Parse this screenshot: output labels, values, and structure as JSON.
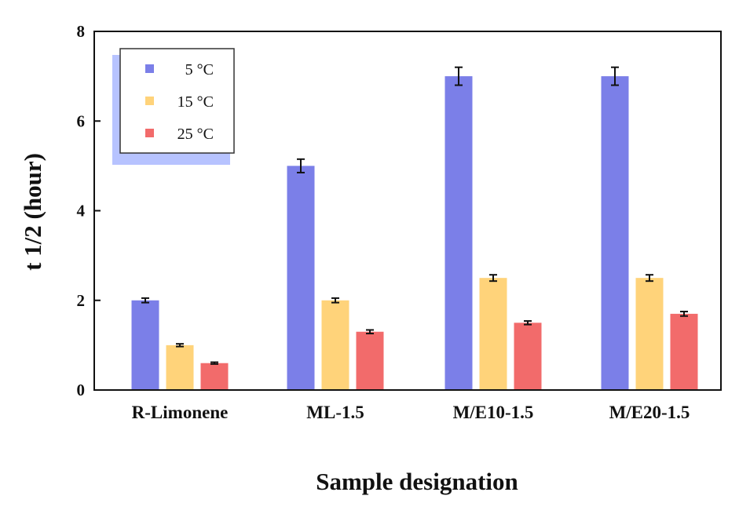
{
  "chart_data": {
    "type": "bar",
    "title": "",
    "xlabel": "Sample designation",
    "ylabel": "t 1/2 (hour)",
    "ylim": [
      0,
      8
    ],
    "yticks": [
      "0",
      "2",
      "4",
      "6",
      "8"
    ],
    "categories": [
      "R-Limonene",
      "ML-1.5",
      "M/E10-1.5",
      "M/E20-1.5"
    ],
    "series": [
      {
        "name": "5 °C",
        "color": "#7b7fe8",
        "values": [
          2.0,
          5.0,
          7.0,
          7.0
        ],
        "errors": [
          0.05,
          0.15,
          0.2,
          0.2
        ]
      },
      {
        "name": "15 °C",
        "color": "#ffd37a",
        "values": [
          1.0,
          2.0,
          2.5,
          2.5
        ],
        "errors": [
          0.03,
          0.05,
          0.07,
          0.07
        ]
      },
      {
        "name": "25 °C",
        "color": "#f26b6b",
        "values": [
          0.6,
          1.3,
          1.5,
          1.7
        ],
        "errors": [
          0.02,
          0.04,
          0.04,
          0.05
        ]
      }
    ],
    "legend_position": "top-left",
    "grid": false
  }
}
